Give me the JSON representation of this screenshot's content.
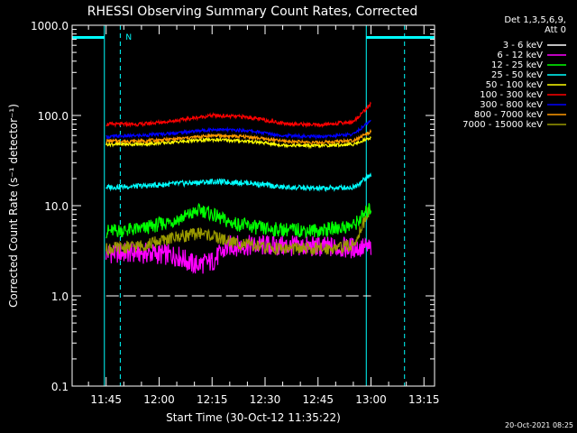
{
  "chart_data": {
    "type": "line",
    "title": "RHESSI Observing Summary Count Rates, Corrected",
    "xlabel": "Start Time (30-Oct-12 11:35:22)",
    "ylabel": "Corrected Count Rate (s⁻¹ detector⁻¹)",
    "y_scale": "log",
    "ylim": [
      0.1,
      1000
    ],
    "xlim": [
      "11:35:22",
      "13:18:00"
    ],
    "x_ticks": [
      "11:45",
      "12:00",
      "12:15",
      "12:30",
      "12:45",
      "13:00",
      "13:15"
    ],
    "y_ticks": [
      "0.1",
      "1.0",
      "10.0",
      "100.0",
      "1000.0"
    ],
    "legend_header": [
      "Det 1,3,5,6,9,",
      "Att 0"
    ],
    "legend_position": "right",
    "timestamp": "20-Oct-2021 08:25",
    "night_marker": "N",
    "night_intervals": [
      [
        "11:35:22",
        "11:44:30"
      ],
      [
        "12:58:40",
        "13:18:00"
      ]
    ],
    "saa_lines": [
      "11:49:00",
      "13:09:30"
    ],
    "data_window": [
      "11:44:30",
      "13:01:00"
    ],
    "series": [
      {
        "name": "3 - 6 keV",
        "color": "#ffffff",
        "points": [
          [
            "11:45",
            1.0
          ],
          [
            "12:00",
            1.0
          ],
          [
            "12:15",
            1.0
          ],
          [
            "12:30",
            1.0
          ],
          [
            "12:45",
            1.0
          ],
          [
            "13:00",
            1.0
          ]
        ]
      },
      {
        "name": "6 - 12 keV",
        "color": "#ff00ff",
        "points": [
          [
            "11:45",
            3.0
          ],
          [
            "11:55",
            3.0
          ],
          [
            "12:05",
            2.8
          ],
          [
            "12:10",
            2.2
          ],
          [
            "12:15",
            2.4
          ],
          [
            "12:20",
            3.6
          ],
          [
            "12:30",
            3.6
          ],
          [
            "12:45",
            3.5
          ],
          [
            "12:55",
            3.4
          ],
          [
            "13:00",
            3.4
          ]
        ]
      },
      {
        "name": "12 - 25 keV",
        "color": "#00ff00",
        "points": [
          [
            "11:45",
            5.2
          ],
          [
            "11:55",
            5.5
          ],
          [
            "12:05",
            7.0
          ],
          [
            "12:12",
            9.0
          ],
          [
            "12:20",
            6.5
          ],
          [
            "12:30",
            5.5
          ],
          [
            "12:45",
            5.3
          ],
          [
            "12:55",
            6.0
          ],
          [
            "13:00",
            9.5
          ]
        ]
      },
      {
        "name": "25 - 50 keV",
        "color": "#00ffff",
        "points": [
          [
            "11:45",
            16
          ],
          [
            "11:55",
            16.5
          ],
          [
            "12:05",
            17.5
          ],
          [
            "12:15",
            18.5
          ],
          [
            "12:25",
            18
          ],
          [
            "12:35",
            16
          ],
          [
            "12:45",
            15.5
          ],
          [
            "12:55",
            16
          ],
          [
            "13:00",
            22
          ]
        ]
      },
      {
        "name": "50 - 100 keV",
        "color": "#ffff00",
        "points": [
          [
            "11:45",
            48
          ],
          [
            "11:55",
            48
          ],
          [
            "12:05",
            51
          ],
          [
            "12:15",
            54
          ],
          [
            "12:25",
            52
          ],
          [
            "12:35",
            47
          ],
          [
            "12:45",
            46
          ],
          [
            "12:55",
            48
          ],
          [
            "13:00",
            57
          ]
        ]
      },
      {
        "name": "100 - 300 keV",
        "color": "#ff0000",
        "points": [
          [
            "11:45",
            80
          ],
          [
            "11:55",
            80
          ],
          [
            "12:05",
            88
          ],
          [
            "12:15",
            100
          ],
          [
            "12:25",
            96
          ],
          [
            "12:35",
            82
          ],
          [
            "12:45",
            78
          ],
          [
            "12:55",
            85
          ],
          [
            "13:00",
            135
          ]
        ]
      },
      {
        "name": "300 - 800 keV",
        "color": "#0000ff",
        "points": [
          [
            "11:45",
            58
          ],
          [
            "11:55",
            60
          ],
          [
            "12:05",
            64
          ],
          [
            "12:15",
            70
          ],
          [
            "12:25",
            68
          ],
          [
            "12:35",
            60
          ],
          [
            "12:45",
            58
          ],
          [
            "12:55",
            62
          ],
          [
            "13:00",
            88
          ]
        ]
      },
      {
        "name": "800 - 7000 keV",
        "color": "#ff9900",
        "points": [
          [
            "11:45",
            52
          ],
          [
            "11:55",
            52
          ],
          [
            "12:05",
            55
          ],
          [
            "12:15",
            60
          ],
          [
            "12:25",
            58
          ],
          [
            "12:35",
            52
          ],
          [
            "12:45",
            50
          ],
          [
            "12:55",
            53
          ],
          [
            "13:00",
            66
          ]
        ]
      },
      {
        "name": "7000 - 15000 keV",
        "color": "#999900",
        "points": [
          [
            "11:45",
            3.3
          ],
          [
            "11:55",
            3.6
          ],
          [
            "12:05",
            4.5
          ],
          [
            "12:12",
            5.0
          ],
          [
            "12:20",
            4.0
          ],
          [
            "12:30",
            3.4
          ],
          [
            "12:45",
            3.3
          ],
          [
            "12:55",
            3.6
          ],
          [
            "13:00",
            10
          ]
        ]
      }
    ]
  }
}
